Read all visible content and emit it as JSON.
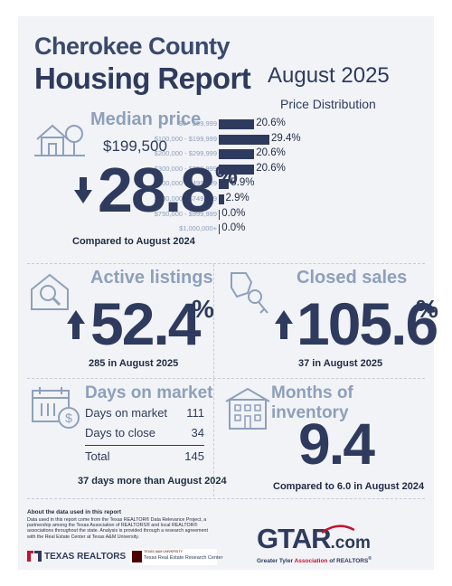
{
  "header": {
    "county": "Cherokee County",
    "report": "Housing Report",
    "month": "August 2025"
  },
  "price_distribution": {
    "title": "Price Distribution",
    "chart_data": {
      "type": "bar",
      "orientation": "horizontal",
      "title": "Price Distribution",
      "categories": [
        "$0 - $99,999",
        "$100,000 - $199,999",
        "$200,000 - $299,999",
        "$300,000 - $399,999",
        "$400,000 - $499,999",
        "$500,000 - $749,999",
        "$750,000 - $999,999",
        "$1,000,000+"
      ],
      "values": [
        20.6,
        29.4,
        20.6,
        20.6,
        5.9,
        2.9,
        0.0,
        0.0
      ],
      "value_labels": [
        "20.6%",
        "29.4%",
        "20.6%",
        "20.6%",
        "5.9%",
        "2.9%",
        "0.0%",
        "0.0%"
      ],
      "unit": "%",
      "bar_color": "#2e3b5e"
    }
  },
  "median_price": {
    "title": "Median price",
    "value": "$199,500",
    "change": "28.8",
    "pct": "%",
    "direction": "down",
    "note": "Compared to August 2024"
  },
  "active_listings": {
    "title": "Active listings",
    "change": "52.4",
    "pct": "%",
    "direction": "up",
    "note": "285 in August 2025"
  },
  "closed_sales": {
    "title": "Closed sales",
    "change": "105.6",
    "pct": "%",
    "direction": "up",
    "note": "37 in August 2025"
  },
  "days_on_market": {
    "title": "Days on market",
    "rows": [
      {
        "label": "Days on market",
        "value": "111"
      },
      {
        "label": "Days to close",
        "value": "34"
      }
    ],
    "total_label": "Total",
    "total_value": "145",
    "note": "37 days more than August 2024"
  },
  "months_inventory": {
    "title": "Months of inventory",
    "value": "9.4",
    "note": "Compared to 6.0 in August 2024"
  },
  "footer": {
    "about_title": "About the data used in this report",
    "about_text": "Data used in this report come from the Texas REALTOR® Data Relevance Project, a partnership among the Texas Association of REALTORS® and local REALTOR® associations throughout the state. Analysis is provided through a research agreement with the Real Estate Center at Texas A&M University.",
    "texas_realtors": "TEXAS REALTORS",
    "tamu_small": "TEXAS A&M UNIVERSITY",
    "research_center": "Texas Real Estate Research Center",
    "gtar_logo": "GTAR",
    "gtar_dotcom": ".com",
    "gtar_name_prefix": "Greater Tyler ",
    "gtar_name_assoc": "Association",
    "gtar_name_suffix": " of REALTORS",
    "gtar_reg": "®",
    "colors": {
      "navy": "#2e3b5e",
      "steel": "#8da0bc",
      "red": "#c8102e",
      "maroon": "#500000"
    }
  }
}
